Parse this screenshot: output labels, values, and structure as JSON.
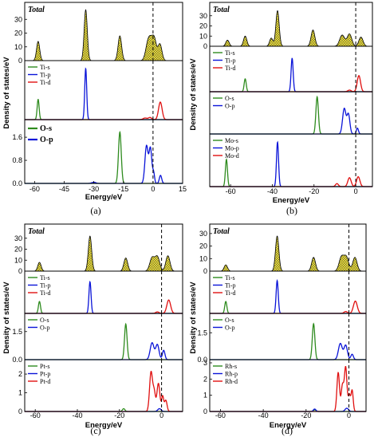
{
  "colors": {
    "s": "#2e8b1e",
    "p": "#0a14d8",
    "d": "#e01010",
    "total_fill": "#f2e428",
    "axis": "#000000"
  },
  "chart_data": [
    {
      "caption": "(a)",
      "type": "line",
      "xlabel": "Energy/eV",
      "ylabel": "Density of states/eV",
      "xlim": [
        -65,
        15
      ],
      "xticks": [
        "-60",
        "-45",
        "-30",
        "-15",
        "0",
        "15"
      ],
      "fermi": 0,
      "panels": [
        {
          "name": "Total",
          "ylim": [
            0,
            40
          ],
          "yticks": [
            "0",
            "10",
            "20",
            "30"
          ],
          "filled": true,
          "series": [
            {
              "name": "",
              "color_key": "total",
              "peaks": [
                [
                  -58.2,
                  14,
                  0.8
                ],
                [
                  -34.1,
                  37,
                  0.8
                ],
                [
                  -16.8,
                  18,
                  0.9
                ],
                [
                  -2.5,
                  13,
                  1.2
                ],
                [
                  -0.8,
                  10,
                  1.1
                ],
                [
                  0.8,
                  13,
                  1.0
                ],
                [
                  3.5,
                  12,
                  1.0
                ]
              ]
            }
          ]
        },
        {
          "name": "Ti",
          "ylim": [
            0,
            10.5
          ],
          "yticks": [],
          "legend_big": false,
          "series": [
            {
              "name": "Ti-s",
              "color_key": "s",
              "peaks": [
                [
                  -58.2,
                  3.8,
                  0.5
                ]
              ]
            },
            {
              "name": "Ti-p",
              "color_key": "p",
              "peaks": [
                [
                  -34.1,
                  9.6,
                  0.5
                ]
              ]
            },
            {
              "name": "Ti-d",
              "color_key": "d",
              "peaks": [
                [
                  -4,
                  0.3,
                  1.0
                ],
                [
                  -1.5,
                  0.4,
                  0.8
                ],
                [
                  3.7,
                  3.3,
                  0.9
                ]
              ]
            }
          ]
        },
        {
          "name": "O",
          "ylim": [
            0,
            2.1
          ],
          "yticks": [
            "0.0",
            "0.8",
            "1.6"
          ],
          "legend_big": true,
          "series": [
            {
              "name": "O-s",
              "color_key": "s",
              "peaks": [
                [
                  -16.8,
                  1.78,
                  0.7
                ]
              ]
            },
            {
              "name": "O-p",
              "color_key": "p",
              "peaks": [
                [
                  -30,
                  0.04,
                  1.0
                ],
                [
                  -3.3,
                  1.3,
                  0.8
                ],
                [
                  -1.3,
                  1.2,
                  0.7
                ],
                [
                  0.3,
                  0.35,
                  0.5
                ],
                [
                  3.8,
                  0.28,
                  0.6
                ]
              ]
            }
          ]
        }
      ]
    },
    {
      "caption": "(b)",
      "type": "line",
      "xlabel": "Energy/eV",
      "ylabel": "Density of states/eV",
      "xlim": [
        -70,
        8
      ],
      "xticks": [
        "-60",
        "-40",
        "-20",
        "0"
      ],
      "fermi": 0,
      "panels": [
        {
          "name": "Total",
          "ylim": [
            0,
            40
          ],
          "yticks": [
            "0",
            "10",
            "20",
            "30"
          ],
          "filled": true,
          "series": [
            {
              "name": "",
              "color_key": "total",
              "peaks": [
                [
                  -61.5,
                  6,
                  0.8
                ],
                [
                  -53,
                  10,
                  0.8
                ],
                [
                  -40.5,
                  8,
                  0.8
                ],
                [
                  -37.5,
                  35,
                  0.8
                ],
                [
                  -20.5,
                  16,
                  0.9
                ],
                [
                  -6.5,
                  11,
                  1.2
                ],
                [
                  -3,
                  12,
                  1.1
                ],
                [
                  2.5,
                  9,
                  1.0
                ]
              ]
            }
          ]
        },
        {
          "name": "Ti",
          "ylim": [
            0,
            10.5
          ],
          "yticks": [],
          "legend_big": false,
          "series": [
            {
              "name": "Ti-s",
              "color_key": "s",
              "peaks": [
                [
                  -53,
                  3.2,
                  0.5
                ]
              ]
            },
            {
              "name": "Ti-p",
              "color_key": "p",
              "peaks": [
                [
                  -30.5,
                  8.3,
                  0.5
                ]
              ]
            },
            {
              "name": "Ti-d",
              "color_key": "d",
              "peaks": [
                [
                  -3,
                  0.4,
                  0.8
                ],
                [
                  1.5,
                  4.0,
                  0.8
                ]
              ]
            }
          ]
        },
        {
          "name": "O",
          "ylim": [
            0,
            2.0
          ],
          "yticks": [],
          "legend_big": false,
          "series": [
            {
              "name": "O-s",
              "color_key": "s",
              "peaks": [
                [
                  -18.5,
                  1.9,
                  0.6
                ]
              ]
            },
            {
              "name": "O-p",
              "color_key": "p",
              "peaks": [
                [
                  -5.5,
                  1.3,
                  0.8
                ],
                [
                  -3.5,
                  1.0,
                  0.7
                ],
                [
                  0.8,
                  0.3,
                  0.5
                ]
              ]
            }
          ]
        },
        {
          "name": "Mo",
          "ylim": [
            0,
            10
          ],
          "yticks": [],
          "legend_big": false,
          "series": [
            {
              "name": "Mo-s",
              "color_key": "s",
              "peaks": [
                [
                  -62,
                  5.5,
                  0.5
                ]
              ]
            },
            {
              "name": "Mo-p",
              "color_key": "p",
              "peaks": [
                [
                  -37.5,
                  9.0,
                  0.5
                ]
              ]
            },
            {
              "name": "Mo-d",
              "color_key": "d",
              "peaks": [
                [
                  -9,
                  0.6,
                  0.7
                ],
                [
                  -3,
                  1.8,
                  0.8
                ],
                [
                  1.2,
                  2.0,
                  0.8
                ]
              ]
            }
          ]
        }
      ]
    },
    {
      "caption": "(c)",
      "type": "line",
      "xlabel": "Energy/eV",
      "ylabel": "Density of states/eV",
      "xlim": [
        -65,
        10
      ],
      "xticks": [
        "-60",
        "-40",
        "-20",
        "0"
      ],
      "fermi": 0,
      "panels": [
        {
          "name": "Total",
          "ylim": [
            0,
            40
          ],
          "yticks": [
            "0",
            "10",
            "20",
            "30"
          ],
          "filled": true,
          "series": [
            {
              "name": "",
              "color_key": "total",
              "peaks": [
                [
                  -58,
                  8,
                  0.8
                ],
                [
                  -34,
                  32,
                  0.8
                ],
                [
                  -17,
                  12,
                  0.9
                ],
                [
                  -4.5,
                  12,
                  1.1
                ],
                [
                  -2,
                  13,
                  1.1
                ],
                [
                  3,
                  14,
                  1.0
                ]
              ]
            }
          ]
        },
        {
          "name": "Ti",
          "ylim": [
            0,
            10.5
          ],
          "yticks": [],
          "legend_big": false,
          "series": [
            {
              "name": "Ti-s",
              "color_key": "s",
              "peaks": [
                [
                  -58,
                  3.2,
                  0.5
                ]
              ]
            },
            {
              "name": "Ti-p",
              "color_key": "p",
              "peaks": [
                [
                  -34,
                  8.5,
                  0.5
                ]
              ]
            },
            {
              "name": "Ti-d",
              "color_key": "d",
              "peaks": [
                [
                  -2,
                  0.4,
                  0.8
                ],
                [
                  3.4,
                  3.6,
                  0.9
                ]
              ]
            }
          ]
        },
        {
          "name": "O",
          "ylim": [
            0,
            2.3
          ],
          "yticks": [
            "0.0",
            "1.5"
          ],
          "legend_big": false,
          "series": [
            {
              "name": "O-s",
              "color_key": "s",
              "peaks": [
                [
                  -17,
                  1.9,
                  0.6
                ]
              ]
            },
            {
              "name": "O-p",
              "color_key": "p",
              "peaks": [
                [
                  -4.5,
                  0.9,
                  0.9
                ],
                [
                  -2,
                  0.8,
                  0.8
                ],
                [
                  1,
                  0.5,
                  0.6
                ]
              ]
            }
          ]
        },
        {
          "name": "Pt",
          "ylim": [
            0,
            2.6
          ],
          "yticks": [
            "0",
            "1",
            "2"
          ],
          "legend_big": false,
          "series": [
            {
              "name": "Pt-s",
              "color_key": "s",
              "peaks": [
                [
                  -18,
                  0.15,
                  0.6
                ]
              ]
            },
            {
              "name": "Pt-p",
              "color_key": "p",
              "peaks": [
                [
                  -1,
                  0.15,
                  0.8
                ]
              ]
            },
            {
              "name": "Pt-d",
              "color_key": "d",
              "peaks": [
                [
                  -5,
                  2.1,
                  0.7
                ],
                [
                  -3.5,
                  1.0,
                  0.6
                ],
                [
                  -1.5,
                  1.5,
                  0.7
                ],
                [
                  0.5,
                  0.8,
                  0.5
                ],
                [
                  2,
                  0.6,
                  0.6
                ]
              ]
            }
          ]
        }
      ]
    },
    {
      "caption": "(d)",
      "type": "line",
      "xlabel": "Energy/eV",
      "ylabel": "Density of states/eV",
      "xlim": [
        -65,
        8
      ],
      "xticks": [
        "-60",
        "-40",
        "-20",
        "0"
      ],
      "fermi": 0,
      "panels": [
        {
          "name": "Total",
          "ylim": [
            0,
            35
          ],
          "yticks": [
            "0",
            "10",
            "20",
            "30"
          ],
          "filled": true,
          "series": [
            {
              "name": "",
              "color_key": "total",
              "peaks": [
                [
                  -57.5,
                  5,
                  0.8
                ],
                [
                  -33.5,
                  28,
                  0.8
                ],
                [
                  -16.5,
                  11,
                  0.9
                ],
                [
                  -3.5,
                  11,
                  1.1
                ],
                [
                  -1.2,
                  11,
                  1.1
                ],
                [
                  2.8,
                  11,
                  1.0
                ]
              ]
            }
          ]
        },
        {
          "name": "Ti",
          "ylim": [
            0,
            10.5
          ],
          "yticks": [],
          "legend_big": false,
          "series": [
            {
              "name": "Ti-s",
              "color_key": "s",
              "peaks": [
                [
                  -57.5,
                  3.2,
                  0.5
                ]
              ]
            },
            {
              "name": "Ti-p",
              "color_key": "p",
              "peaks": [
                [
                  -33.5,
                  8.8,
                  0.5
                ]
              ]
            },
            {
              "name": "Ti-d",
              "color_key": "d",
              "peaks": [
                [
                  -1.5,
                  0.5,
                  0.8
                ],
                [
                  3,
                  3.3,
                  0.9
                ]
              ]
            }
          ]
        },
        {
          "name": "O",
          "ylim": [
            0,
            2.4
          ],
          "yticks": [
            "0.0",
            "1.5"
          ],
          "legend_big": false,
          "series": [
            {
              "name": "O-s",
              "color_key": "s",
              "peaks": [
                [
                  -16.5,
                  2.0,
                  0.6
                ]
              ]
            },
            {
              "name": "O-p",
              "color_key": "p",
              "peaks": [
                [
                  -4,
                  0.9,
                  0.9
                ],
                [
                  -1.5,
                  0.8,
                  0.8
                ],
                [
                  1.5,
                  0.3,
                  0.6
                ]
              ]
            }
          ]
        },
        {
          "name": "Rh",
          "ylim": [
            0,
            3.0
          ],
          "yticks": [
            "0",
            "1",
            "2",
            "3"
          ],
          "legend_big": false,
          "series": [
            {
              "name": "Rh-s",
              "color_key": "s",
              "peaks": [
                [
                  -16,
                  0.1,
                  0.6
                ]
              ]
            },
            {
              "name": "Rh-p",
              "color_key": "p",
              "peaks": [
                [
                  -16,
                  0.15,
                  0.6
                ],
                [
                  -1,
                  0.2,
                  0.8
                ]
              ]
            },
            {
              "name": "Rh-d",
              "color_key": "d",
              "peaks": [
                [
                  -5,
                  2.4,
                  0.6
                ],
                [
                  -3,
                  1.6,
                  0.6
                ],
                [
                  -1.5,
                  2.7,
                  0.6
                ],
                [
                  0.2,
                  1.0,
                  0.5
                ],
                [
                  1.5,
                  1.3,
                  0.5
                ]
              ]
            }
          ]
        }
      ]
    }
  ]
}
